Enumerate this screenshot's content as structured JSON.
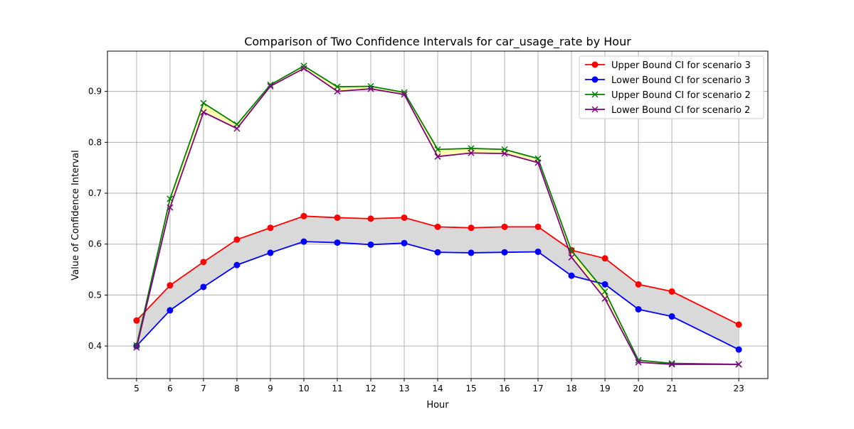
{
  "chart_data": {
    "type": "line",
    "title": "Comparison of Two Confidence Intervals for car_usage_rate by Hour",
    "xlabel": "Hour",
    "ylabel": "Value of Confidence Interval",
    "x": [
      5,
      6,
      7,
      8,
      9,
      10,
      11,
      12,
      13,
      14,
      15,
      16,
      17,
      18,
      19,
      20,
      21,
      23
    ],
    "xlim": [
      4.13,
      23.87
    ],
    "ylim": [
      0.336,
      0.979
    ],
    "yticks": [
      0.4,
      0.5,
      0.6,
      0.7,
      0.8,
      0.9
    ],
    "ytick_labels": [
      "0.4",
      "0.5",
      "0.6",
      "0.7",
      "0.8",
      "0.9"
    ],
    "xtick_labels": [
      "5",
      "6",
      "7",
      "8",
      "9",
      "10",
      "11",
      "12",
      "13",
      "14",
      "15",
      "16",
      "17",
      "18",
      "19",
      "20",
      "21",
      "23"
    ],
    "grid": true,
    "legend_position": "top-right",
    "series": [
      {
        "name": "Upper Bound CI for scenario 3",
        "color": "#ff0000",
        "marker": "circle",
        "values": [
          0.45,
          0.519,
          0.565,
          0.609,
          0.632,
          0.655,
          0.652,
          0.65,
          0.652,
          0.634,
          0.632,
          0.634,
          0.634,
          0.588,
          0.572,
          0.521,
          0.507,
          0.442
        ]
      },
      {
        "name": "Lower Bound CI for scenario 3",
        "color": "#0000ff",
        "marker": "circle",
        "values": [
          0.4,
          0.47,
          0.516,
          0.559,
          0.583,
          0.605,
          0.603,
          0.599,
          0.602,
          0.584,
          0.583,
          0.584,
          0.585,
          0.538,
          0.521,
          0.472,
          0.458,
          0.393
        ]
      },
      {
        "name": "Upper Bound CI for scenario 2",
        "color": "#008000",
        "marker": "x",
        "values": [
          0.401,
          0.689,
          0.877,
          0.835,
          0.913,
          0.95,
          0.909,
          0.91,
          0.898,
          0.786,
          0.788,
          0.786,
          0.768,
          0.587,
          0.507,
          0.372,
          0.366,
          0.364
        ]
      },
      {
        "name": "Lower Bound CI for scenario 2",
        "color": "#800080",
        "marker": "x",
        "values": [
          0.397,
          0.672,
          0.859,
          0.827,
          0.91,
          0.945,
          0.9,
          0.905,
          0.894,
          0.772,
          0.779,
          0.778,
          0.76,
          0.574,
          0.493,
          0.368,
          0.364,
          0.364
        ]
      }
    ],
    "fills": [
      {
        "between": [
          0,
          1
        ],
        "color": "#d9d9d9"
      },
      {
        "between": [
          2,
          3
        ],
        "color": "#ffffb0"
      }
    ]
  }
}
